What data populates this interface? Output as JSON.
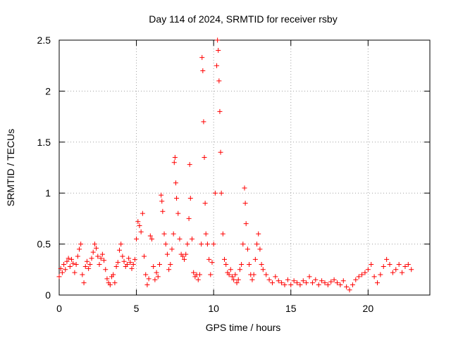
{
  "chart_data": {
    "type": "scatter",
    "title": "Day 114 of 2024, SRMTID for receiver rsby",
    "xlabel": "GPS time / hours",
    "ylabel": "SRMTID / TECUs",
    "xlim": [
      0,
      24
    ],
    "ylim": [
      0,
      2.5
    ],
    "xticks": [
      0,
      5,
      10,
      15,
      20
    ],
    "yticks": [
      0,
      0.5,
      1,
      1.5,
      2,
      2.5
    ],
    "xtick_labels": [
      "0",
      "5",
      "10",
      "15",
      "20"
    ],
    "ytick_labels": [
      "0",
      "0.5",
      "1",
      "1.5",
      "2",
      "2.5"
    ],
    "grid": true,
    "marker": "+",
    "series": [
      {
        "name": "SRMTID",
        "color": "#ff0000",
        "points": [
          [
            0.0,
            0.18
          ],
          [
            0.1,
            0.26
          ],
          [
            0.2,
            0.22
          ],
          [
            0.3,
            0.3
          ],
          [
            0.4,
            0.25
          ],
          [
            0.5,
            0.33
          ],
          [
            0.6,
            0.36
          ],
          [
            0.7,
            0.28
          ],
          [
            0.8,
            0.35
          ],
          [
            0.9,
            0.31
          ],
          [
            1.0,
            0.22
          ],
          [
            1.1,
            0.3
          ],
          [
            1.2,
            0.38
          ],
          [
            1.3,
            0.45
          ],
          [
            1.4,
            0.5
          ],
          [
            1.5,
            0.2
          ],
          [
            1.6,
            0.12
          ],
          [
            1.7,
            0.28
          ],
          [
            1.8,
            0.33
          ],
          [
            1.9,
            0.26
          ],
          [
            2.0,
            0.3
          ],
          [
            2.1,
            0.36
          ],
          [
            2.2,
            0.42
          ],
          [
            2.3,
            0.5
          ],
          [
            2.4,
            0.46
          ],
          [
            2.5,
            0.38
          ],
          [
            2.6,
            0.3
          ],
          [
            2.7,
            0.36
          ],
          [
            2.8,
            0.4
          ],
          [
            2.9,
            0.34
          ],
          [
            3.0,
            0.25
          ],
          [
            3.1,
            0.16
          ],
          [
            3.2,
            0.12
          ],
          [
            3.3,
            0.1
          ],
          [
            3.4,
            0.18
          ],
          [
            3.5,
            0.2
          ],
          [
            3.6,
            0.12
          ],
          [
            3.7,
            0.28
          ],
          [
            3.8,
            0.32
          ],
          [
            3.9,
            0.44
          ],
          [
            4.0,
            0.5
          ],
          [
            4.1,
            0.38
          ],
          [
            4.2,
            0.33
          ],
          [
            4.3,
            0.28
          ],
          [
            4.4,
            0.3
          ],
          [
            4.5,
            0.36
          ],
          [
            4.6,
            0.32
          ],
          [
            4.7,
            0.26
          ],
          [
            4.8,
            0.3
          ],
          [
            4.9,
            0.35
          ],
          [
            5.0,
            0.55
          ],
          [
            5.1,
            0.72
          ],
          [
            5.2,
            0.68
          ],
          [
            5.3,
            0.62
          ],
          [
            5.4,
            0.8
          ],
          [
            5.5,
            0.38
          ],
          [
            5.6,
            0.2
          ],
          [
            5.7,
            0.1
          ],
          [
            5.8,
            0.16
          ],
          [
            5.9,
            0.58
          ],
          [
            6.0,
            0.55
          ],
          [
            6.1,
            0.28
          ],
          [
            6.2,
            0.15
          ],
          [
            6.3,
            0.22
          ],
          [
            6.4,
            0.18
          ],
          [
            6.5,
            0.3
          ],
          [
            6.6,
            0.98
          ],
          [
            6.65,
            0.92
          ],
          [
            6.7,
            0.82
          ],
          [
            6.8,
            0.6
          ],
          [
            6.9,
            0.5
          ],
          [
            7.0,
            0.4
          ],
          [
            7.1,
            0.25
          ],
          [
            7.2,
            0.3
          ],
          [
            7.3,
            0.45
          ],
          [
            7.4,
            0.6
          ],
          [
            7.45,
            1.3
          ],
          [
            7.5,
            1.35
          ],
          [
            7.55,
            1.1
          ],
          [
            7.6,
            0.95
          ],
          [
            7.7,
            0.8
          ],
          [
            7.8,
            0.55
          ],
          [
            7.9,
            0.4
          ],
          [
            8.0,
            0.38
          ],
          [
            8.1,
            0.35
          ],
          [
            8.2,
            0.4
          ],
          [
            8.3,
            0.5
          ],
          [
            8.4,
            0.75
          ],
          [
            8.45,
            1.28
          ],
          [
            8.5,
            0.95
          ],
          [
            8.6,
            0.55
          ],
          [
            8.7,
            0.22
          ],
          [
            8.8,
            0.18
          ],
          [
            8.9,
            0.2
          ],
          [
            9.0,
            0.15
          ],
          [
            9.1,
            0.2
          ],
          [
            9.2,
            0.5
          ],
          [
            9.25,
            2.33
          ],
          [
            9.3,
            2.2
          ],
          [
            9.35,
            1.7
          ],
          [
            9.4,
            1.35
          ],
          [
            9.45,
            0.9
          ],
          [
            9.5,
            0.6
          ],
          [
            9.6,
            0.5
          ],
          [
            9.7,
            0.35
          ],
          [
            9.8,
            0.2
          ],
          [
            9.9,
            0.32
          ],
          [
            10.0,
            0.5
          ],
          [
            10.1,
            1.0
          ],
          [
            10.2,
            2.25
          ],
          [
            10.25,
            2.5
          ],
          [
            10.3,
            2.4
          ],
          [
            10.35,
            2.1
          ],
          [
            10.4,
            1.8
          ],
          [
            10.45,
            1.4
          ],
          [
            10.5,
            1.0
          ],
          [
            10.6,
            0.6
          ],
          [
            10.7,
            0.35
          ],
          [
            10.8,
            0.3
          ],
          [
            10.9,
            0.22
          ],
          [
            11.0,
            0.2
          ],
          [
            11.1,
            0.25
          ],
          [
            11.2,
            0.18
          ],
          [
            11.3,
            0.15
          ],
          [
            11.4,
            0.2
          ],
          [
            11.5,
            0.12
          ],
          [
            11.6,
            0.15
          ],
          [
            11.7,
            0.25
          ],
          [
            11.8,
            0.3
          ],
          [
            11.9,
            0.5
          ],
          [
            12.0,
            1.05
          ],
          [
            12.05,
            0.9
          ],
          [
            12.1,
            0.7
          ],
          [
            12.2,
            0.45
          ],
          [
            12.3,
            0.3
          ],
          [
            12.4,
            0.2
          ],
          [
            12.5,
            0.15
          ],
          [
            12.6,
            0.2
          ],
          [
            12.7,
            0.35
          ],
          [
            12.8,
            0.5
          ],
          [
            12.9,
            0.6
          ],
          [
            13.0,
            0.45
          ],
          [
            13.1,
            0.3
          ],
          [
            13.2,
            0.25
          ],
          [
            13.4,
            0.2
          ],
          [
            13.6,
            0.15
          ],
          [
            13.8,
            0.12
          ],
          [
            14.0,
            0.18
          ],
          [
            14.2,
            0.14
          ],
          [
            14.4,
            0.12
          ],
          [
            14.6,
            0.1
          ],
          [
            14.8,
            0.15
          ],
          [
            15.0,
            0.1
          ],
          [
            15.2,
            0.14
          ],
          [
            15.4,
            0.12
          ],
          [
            15.6,
            0.1
          ],
          [
            15.8,
            0.14
          ],
          [
            16.0,
            0.12
          ],
          [
            16.2,
            0.18
          ],
          [
            16.4,
            0.12
          ],
          [
            16.6,
            0.15
          ],
          [
            16.8,
            0.1
          ],
          [
            17.0,
            0.14
          ],
          [
            17.2,
            0.12
          ],
          [
            17.4,
            0.1
          ],
          [
            17.6,
            0.13
          ],
          [
            17.8,
            0.15
          ],
          [
            18.0,
            0.12
          ],
          [
            18.2,
            0.1
          ],
          [
            18.4,
            0.14
          ],
          [
            18.6,
            0.08
          ],
          [
            18.8,
            0.05
          ],
          [
            19.0,
            0.1
          ],
          [
            19.2,
            0.15
          ],
          [
            19.4,
            0.18
          ],
          [
            19.6,
            0.2
          ],
          [
            19.8,
            0.22
          ],
          [
            20.0,
            0.25
          ],
          [
            20.2,
            0.3
          ],
          [
            20.4,
            0.18
          ],
          [
            20.6,
            0.12
          ],
          [
            20.8,
            0.2
          ],
          [
            21.0,
            0.28
          ],
          [
            21.2,
            0.35
          ],
          [
            21.4,
            0.3
          ],
          [
            21.6,
            0.22
          ],
          [
            21.8,
            0.25
          ],
          [
            22.0,
            0.3
          ],
          [
            22.2,
            0.22
          ],
          [
            22.4,
            0.28
          ],
          [
            22.6,
            0.3
          ],
          [
            22.8,
            0.25
          ]
        ]
      }
    ]
  }
}
